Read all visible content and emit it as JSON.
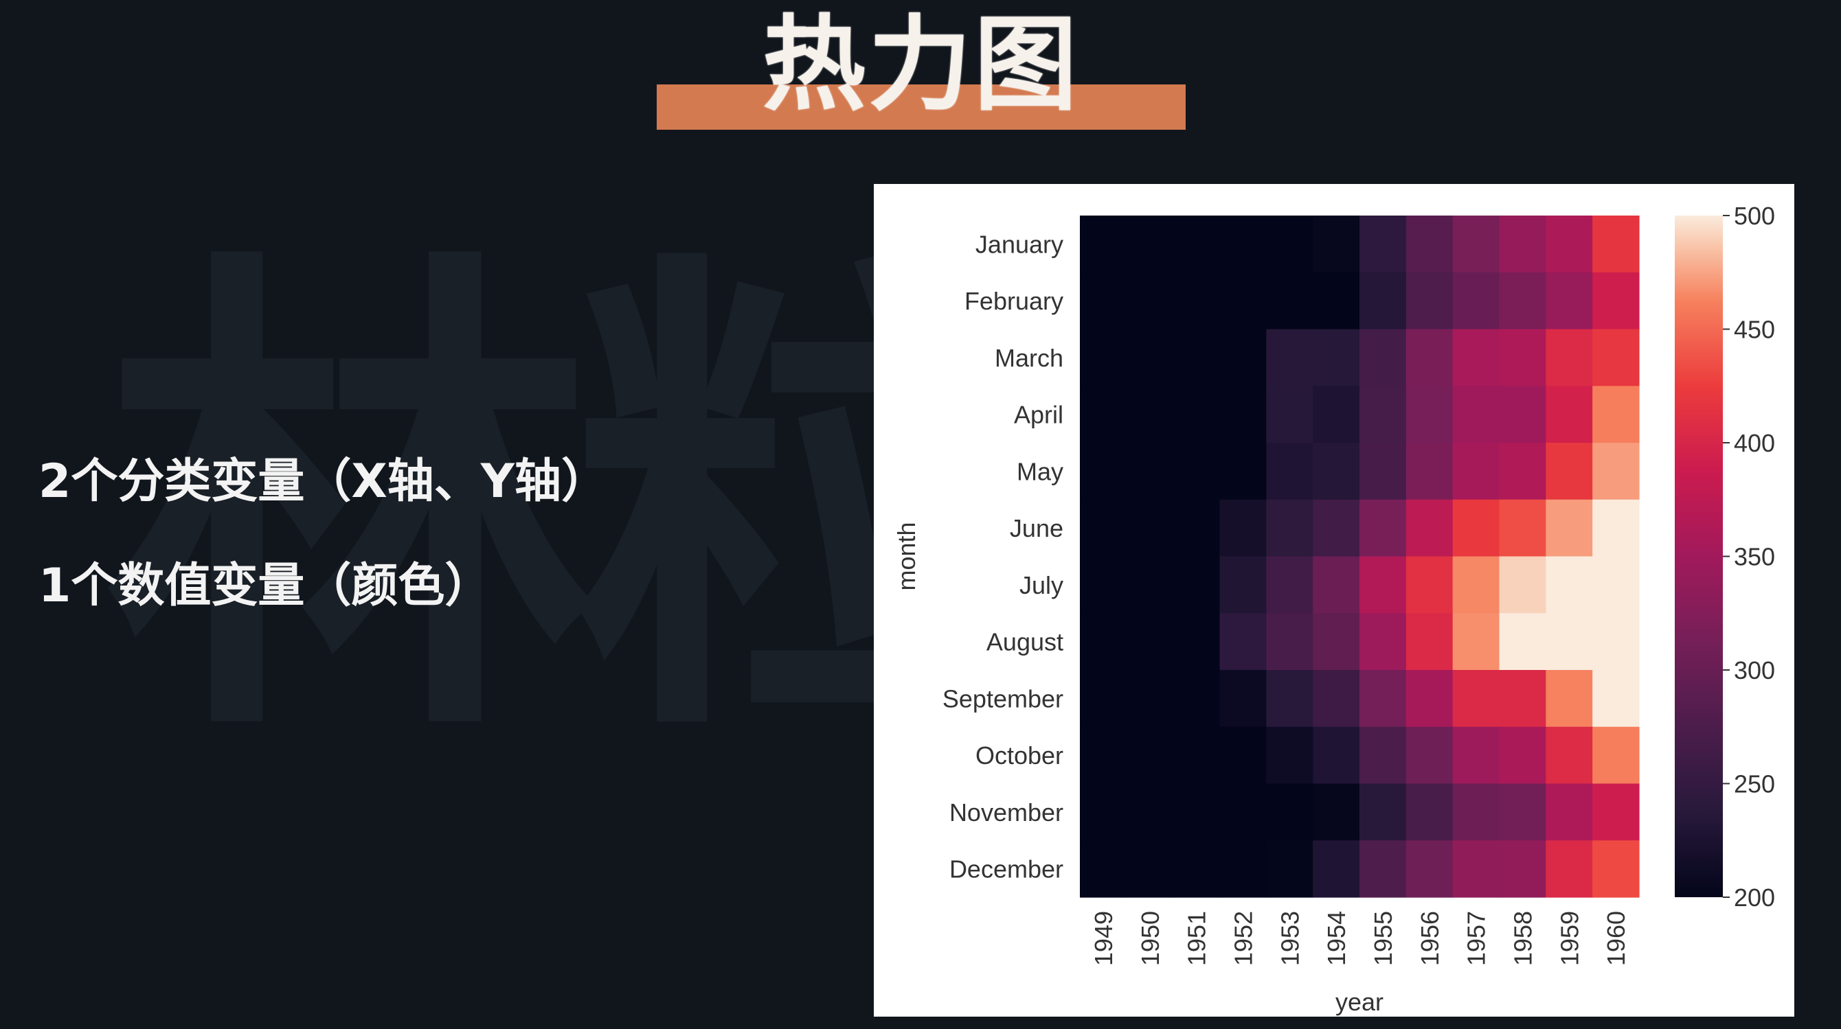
{
  "slide": {
    "watermark": "林粒",
    "title": "热力图",
    "desc_line1": "2个分类变量（X轴、Y轴）",
    "desc_line2": "1个数值变量（颜色）"
  },
  "chart_data": {
    "type": "heatmap",
    "xlabel": "year",
    "ylabel": "month",
    "x": [
      "1949",
      "1950",
      "1951",
      "1952",
      "1953",
      "1954",
      "1955",
      "1956",
      "1957",
      "1958",
      "1959",
      "1960"
    ],
    "y": [
      "January",
      "February",
      "March",
      "April",
      "May",
      "June",
      "July",
      "August",
      "September",
      "October",
      "November",
      "December"
    ],
    "values": [
      [
        112,
        115,
        145,
        171,
        196,
        204,
        242,
        284,
        315,
        340,
        360,
        417
      ],
      [
        118,
        126,
        150,
        180,
        196,
        188,
        233,
        277,
        301,
        318,
        342,
        391
      ],
      [
        132,
        141,
        178,
        193,
        236,
        235,
        267,
        317,
        356,
        362,
        406,
        419
      ],
      [
        129,
        135,
        163,
        181,
        235,
        227,
        269,
        313,
        348,
        348,
        396,
        461
      ],
      [
        121,
        125,
        172,
        183,
        229,
        234,
        270,
        318,
        355,
        363,
        420,
        472
      ],
      [
        135,
        149,
        178,
        218,
        243,
        264,
        315,
        374,
        422,
        435,
        472,
        535
      ],
      [
        148,
        170,
        199,
        230,
        264,
        302,
        364,
        413,
        465,
        491,
        548,
        622
      ],
      [
        148,
        170,
        199,
        242,
        272,
        293,
        347,
        405,
        467,
        505,
        559,
        606
      ],
      [
        136,
        158,
        184,
        209,
        237,
        259,
        312,
        355,
        404,
        404,
        463,
        508
      ],
      [
        119,
        133,
        162,
        191,
        211,
        229,
        274,
        306,
        347,
        359,
        407,
        461
      ],
      [
        104,
        114,
        146,
        172,
        180,
        203,
        237,
        271,
        305,
        310,
        362,
        390
      ],
      [
        118,
        140,
        166,
        194,
        201,
        229,
        278,
        306,
        336,
        337,
        405,
        432
      ]
    ],
    "colorbar": {
      "min": 200,
      "max": 500,
      "ticks": [
        "200",
        "250",
        "300",
        "350",
        "400",
        "450",
        "500"
      ]
    },
    "colormap": "rocket"
  }
}
